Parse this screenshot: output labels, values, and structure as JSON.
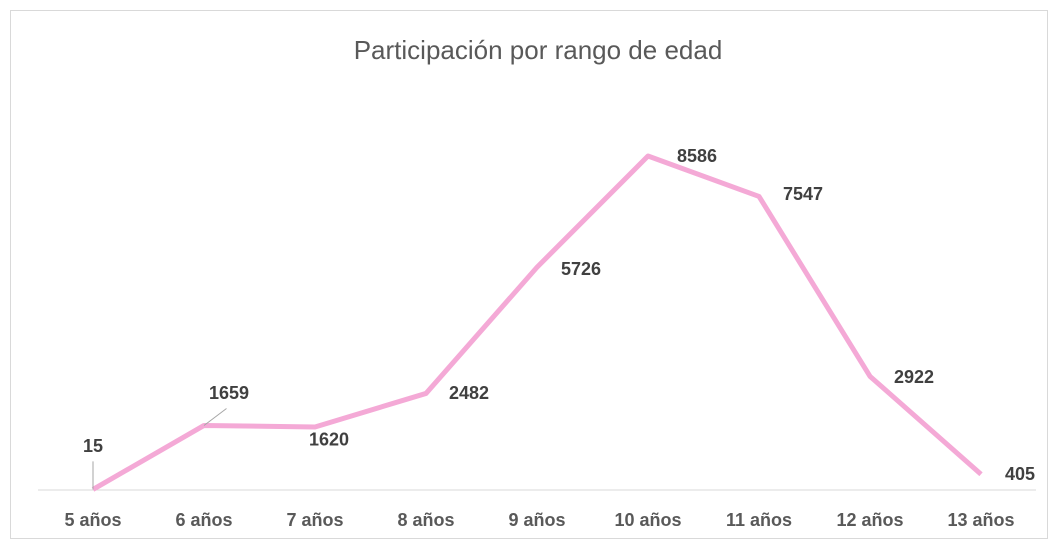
{
  "chart_data": {
    "type": "line",
    "title": "Participación por rango de edad",
    "categories": [
      "5 años",
      "6 años",
      "7 años",
      "8 años",
      "9 años",
      "10 años",
      "11 años",
      "12 años",
      "13 años"
    ],
    "values": [
      15,
      1659,
      1620,
      2482,
      5726,
      8586,
      7547,
      2922,
      405
    ],
    "color": "#f4a9d6",
    "ylim": [
      0,
      10000
    ]
  }
}
